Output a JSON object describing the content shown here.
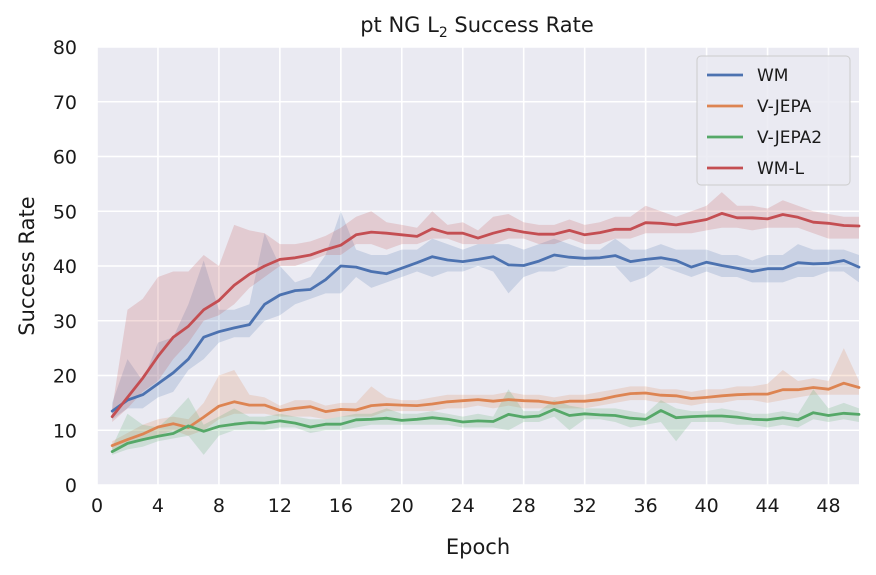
{
  "chart_data": {
    "type": "line",
    "title": "pt NG L",
    "title_subscript": "2",
    "title_suffix": " Success Rate",
    "xlabel": "Epoch",
    "ylabel": "Success Rate",
    "xlim": [
      0,
      50
    ],
    "ylim": [
      0,
      80
    ],
    "xticks": [
      0,
      4,
      8,
      12,
      16,
      20,
      24,
      28,
      32,
      36,
      40,
      44,
      48
    ],
    "yticks": [
      0,
      10,
      20,
      30,
      40,
      50,
      60,
      70,
      80
    ],
    "grid": true,
    "legend_position": "top-right",
    "x": [
      1,
      2,
      3,
      4,
      5,
      6,
      7,
      8,
      9,
      10,
      11,
      12,
      13,
      14,
      15,
      16,
      17,
      18,
      19,
      20,
      21,
      22,
      23,
      24,
      25,
      26,
      27,
      28,
      29,
      30,
      31,
      32,
      33,
      34,
      35,
      36,
      37,
      38,
      39,
      40,
      41,
      42,
      43,
      44,
      45,
      46,
      47,
      48,
      49,
      50
    ],
    "series": [
      {
        "name": "WM",
        "color": "#4c72b0",
        "values": [
          13.5,
          15.5,
          16.5,
          18.5,
          20.5,
          23.0,
          27.0,
          28.0,
          28.7,
          29.3,
          33.0,
          34.7,
          35.5,
          35.7,
          37.5,
          40.0,
          39.8,
          39.0,
          38.6,
          39.6,
          40.6,
          41.7,
          41.1,
          40.8,
          41.2,
          41.7,
          40.2,
          40.1,
          40.9,
          42.0,
          41.6,
          41.4,
          41.5,
          41.9,
          40.8,
          41.2,
          41.5,
          41.0,
          39.8,
          40.7,
          40.1,
          39.6,
          39.0,
          39.5,
          39.5,
          40.6,
          40.4,
          40.5,
          41.0,
          39.8
        ],
        "band": [
          [
            12.0,
            15.0
          ],
          [
            14.0,
            23.0
          ],
          [
            14.0,
            19.0
          ],
          [
            16.0,
            26.0
          ],
          [
            17.0,
            27.0
          ],
          [
            21.0,
            33.0
          ],
          [
            23.0,
            41.0
          ],
          [
            26.0,
            32.0
          ],
          [
            27.0,
            32.0
          ],
          [
            27.0,
            33.0
          ],
          [
            30.0,
            46.0
          ],
          [
            31.0,
            40.0
          ],
          [
            33.0,
            37.0
          ],
          [
            34.0,
            38.0
          ],
          [
            35.0,
            42.0
          ],
          [
            35.0,
            50.0
          ],
          [
            38.0,
            43.0
          ],
          [
            36.0,
            42.0
          ],
          [
            37.0,
            42.0
          ],
          [
            38.0,
            43.0
          ],
          [
            39.0,
            43.0
          ],
          [
            38.0,
            45.0
          ],
          [
            39.0,
            44.0
          ],
          [
            39.0,
            43.0
          ],
          [
            40.0,
            44.0
          ],
          [
            39.0,
            44.0
          ],
          [
            35.0,
            44.0
          ],
          [
            38.0,
            43.0
          ],
          [
            39.0,
            44.0
          ],
          [
            39.0,
            45.0
          ],
          [
            40.0,
            44.0
          ],
          [
            40.0,
            43.0
          ],
          [
            40.0,
            43.0
          ],
          [
            40.0,
            45.0
          ],
          [
            37.0,
            43.0
          ],
          [
            38.0,
            43.0
          ],
          [
            40.0,
            44.0
          ],
          [
            39.0,
            43.0
          ],
          [
            38.0,
            43.0
          ],
          [
            39.0,
            43.0
          ],
          [
            38.0,
            42.0
          ],
          [
            38.0,
            42.0
          ],
          [
            37.0,
            41.0
          ],
          [
            37.0,
            42.0
          ],
          [
            37.0,
            42.0
          ],
          [
            38.0,
            44.0
          ],
          [
            38.0,
            43.0
          ],
          [
            39.0,
            43.0
          ],
          [
            39.0,
            43.0
          ],
          [
            37.0,
            42.0
          ]
        ]
      },
      {
        "name": "V-JEPA",
        "color": "#dd8452",
        "values": [
          7.2,
          8.3,
          9.3,
          10.6,
          11.2,
          10.5,
          12.4,
          14.4,
          15.2,
          14.6,
          14.6,
          13.6,
          14.0,
          14.3,
          13.4,
          13.8,
          13.7,
          14.5,
          14.7,
          14.6,
          14.5,
          14.8,
          15.2,
          15.4,
          15.6,
          15.3,
          15.6,
          15.4,
          15.3,
          14.9,
          15.3,
          15.3,
          15.6,
          16.2,
          16.7,
          16.8,
          16.4,
          16.3,
          15.8,
          16.0,
          16.3,
          16.5,
          16.6,
          16.6,
          17.4,
          17.4,
          17.8,
          17.5,
          18.6,
          17.8
        ],
        "band": [
          [
            6.5,
            8.0
          ],
          [
            7.5,
            9.5
          ],
          [
            8.0,
            11.0
          ],
          [
            9.0,
            12.0
          ],
          [
            10.0,
            12.5
          ],
          [
            9.0,
            12.0
          ],
          [
            10.0,
            15.0
          ],
          [
            12.0,
            20.0
          ],
          [
            13.0,
            21.0
          ],
          [
            13.0,
            16.5
          ],
          [
            13.0,
            16.0
          ],
          [
            12.5,
            14.5
          ],
          [
            12.5,
            15.5
          ],
          [
            12.5,
            15.5
          ],
          [
            12.0,
            14.5
          ],
          [
            12.5,
            15.0
          ],
          [
            12.5,
            15.0
          ],
          [
            12.5,
            18.0
          ],
          [
            13.5,
            16.0
          ],
          [
            13.5,
            15.5
          ],
          [
            13.5,
            15.5
          ],
          [
            13.5,
            16.0
          ],
          [
            14.0,
            16.5
          ],
          [
            14.0,
            16.5
          ],
          [
            14.5,
            16.5
          ],
          [
            14.0,
            16.5
          ],
          [
            14.5,
            17.0
          ],
          [
            14.0,
            16.5
          ],
          [
            14.0,
            16.5
          ],
          [
            14.0,
            16.0
          ],
          [
            14.0,
            16.5
          ],
          [
            14.0,
            16.5
          ],
          [
            14.5,
            17.0
          ],
          [
            15.0,
            17.5
          ],
          [
            15.5,
            18.0
          ],
          [
            15.5,
            18.0
          ],
          [
            15.0,
            17.5
          ],
          [
            15.0,
            17.5
          ],
          [
            14.5,
            17.0
          ],
          [
            15.0,
            17.5
          ],
          [
            15.0,
            17.5
          ],
          [
            15.5,
            18.0
          ],
          [
            15.5,
            18.0
          ],
          [
            15.0,
            18.5
          ],
          [
            15.5,
            21.0
          ],
          [
            16.0,
            19.0
          ],
          [
            16.5,
            19.5
          ],
          [
            16.5,
            19.0
          ],
          [
            16.5,
            25.0
          ],
          [
            16.5,
            19.0
          ]
        ]
      },
      {
        "name": "V-JEPA2",
        "color": "#55a868",
        "values": [
          6.1,
          7.6,
          8.3,
          8.9,
          9.4,
          10.8,
          9.8,
          10.7,
          11.1,
          11.4,
          11.3,
          11.7,
          11.3,
          10.6,
          11.1,
          11.1,
          11.9,
          12.0,
          12.2,
          11.8,
          12.0,
          12.3,
          12.0,
          11.5,
          11.7,
          11.6,
          12.9,
          12.4,
          12.6,
          13.8,
          12.7,
          13.0,
          12.8,
          12.7,
          12.2,
          12.0,
          13.6,
          12.3,
          12.5,
          12.6,
          12.6,
          12.4,
          12.0,
          11.9,
          12.3,
          11.9,
          13.2,
          12.7,
          13.1,
          12.9
        ],
        "band": [
          [
            5.5,
            7.0
          ],
          [
            6.5,
            13.0
          ],
          [
            7.0,
            11.0
          ],
          [
            8.0,
            10.5
          ],
          [
            8.5,
            13.0
          ],
          [
            9.0,
            16.0
          ],
          [
            5.5,
            11.0
          ],
          [
            9.0,
            12.5
          ],
          [
            10.0,
            14.0
          ],
          [
            10.0,
            12.5
          ],
          [
            10.0,
            12.5
          ],
          [
            10.5,
            13.0
          ],
          [
            10.5,
            12.5
          ],
          [
            9.5,
            12.0
          ],
          [
            10.0,
            12.0
          ],
          [
            10.0,
            12.5
          ],
          [
            10.5,
            13.0
          ],
          [
            11.0,
            13.0
          ],
          [
            11.0,
            14.0
          ],
          [
            11.0,
            13.0
          ],
          [
            11.0,
            13.0
          ],
          [
            11.0,
            13.5
          ],
          [
            11.0,
            13.0
          ],
          [
            10.5,
            12.5
          ],
          [
            10.5,
            13.0
          ],
          [
            10.5,
            12.5
          ],
          [
            10.0,
            17.5
          ],
          [
            11.5,
            13.5
          ],
          [
            11.5,
            13.5
          ],
          [
            12.5,
            15.5
          ],
          [
            10.0,
            14.5
          ],
          [
            12.0,
            14.0
          ],
          [
            12.0,
            14.0
          ],
          [
            11.5,
            14.0
          ],
          [
            10.5,
            13.5
          ],
          [
            11.0,
            13.0
          ],
          [
            11.5,
            15.5
          ],
          [
            8.0,
            14.0
          ],
          [
            11.5,
            13.5
          ],
          [
            11.5,
            13.5
          ],
          [
            11.5,
            14.0
          ],
          [
            11.0,
            13.5
          ],
          [
            11.0,
            13.0
          ],
          [
            10.5,
            13.0
          ],
          [
            11.0,
            13.5
          ],
          [
            10.5,
            13.0
          ],
          [
            12.0,
            17.5
          ],
          [
            11.5,
            14.0
          ],
          [
            12.0,
            15.0
          ],
          [
            11.5,
            14.0
          ]
        ]
      },
      {
        "name": "WM-L",
        "color": "#c44e52",
        "values": [
          12.5,
          16.0,
          19.5,
          23.5,
          27.0,
          29.0,
          32.0,
          33.7,
          36.5,
          38.5,
          40.0,
          41.2,
          41.5,
          42.0,
          43.0,
          43.8,
          45.7,
          46.2,
          46.0,
          45.7,
          45.4,
          46.8,
          46.0,
          46.0,
          45.1,
          46.0,
          46.7,
          46.2,
          45.8,
          45.8,
          46.5,
          45.7,
          46.1,
          46.7,
          46.7,
          47.9,
          47.8,
          47.5,
          48.0,
          48.5,
          49.6,
          48.8,
          48.8,
          48.6,
          49.4,
          48.9,
          48.0,
          47.8,
          47.4,
          47.3
        ],
        "band": [
          [
            11.5,
            14.0
          ],
          [
            14.0,
            32.0
          ],
          [
            17.0,
            34.0
          ],
          [
            19.0,
            38.0
          ],
          [
            23.0,
            39.0
          ],
          [
            26.0,
            39.0
          ],
          [
            30.0,
            42.0
          ],
          [
            31.0,
            40.0
          ],
          [
            33.0,
            47.5
          ],
          [
            36.0,
            46.5
          ],
          [
            38.0,
            46.0
          ],
          [
            40.0,
            44.0
          ],
          [
            40.0,
            44.0
          ],
          [
            41.0,
            44.5
          ],
          [
            42.0,
            45.5
          ],
          [
            42.0,
            47.0
          ],
          [
            44.0,
            49.0
          ],
          [
            44.0,
            50.0
          ],
          [
            43.0,
            48.0
          ],
          [
            44.0,
            47.5
          ],
          [
            44.0,
            47.0
          ],
          [
            45.0,
            50.0
          ],
          [
            45.0,
            47.5
          ],
          [
            44.0,
            48.0
          ],
          [
            44.0,
            46.5
          ],
          [
            44.0,
            49.0
          ],
          [
            45.0,
            49.5
          ],
          [
            45.0,
            48.0
          ],
          [
            44.0,
            47.5
          ],
          [
            44.0,
            47.5
          ],
          [
            45.0,
            48.5
          ],
          [
            44.0,
            47.5
          ],
          [
            44.0,
            48.0
          ],
          [
            45.0,
            49.0
          ],
          [
            45.0,
            49.0
          ],
          [
            46.0,
            51.0
          ],
          [
            46.0,
            50.0
          ],
          [
            46.0,
            49.0
          ],
          [
            46.0,
            50.0
          ],
          [
            46.5,
            51.0
          ],
          [
            47.0,
            53.5
          ],
          [
            47.0,
            51.0
          ],
          [
            46.5,
            51.0
          ],
          [
            47.0,
            50.5
          ],
          [
            47.0,
            52.0
          ],
          [
            47.0,
            51.0
          ],
          [
            46.0,
            50.0
          ],
          [
            45.0,
            49.5
          ],
          [
            45.0,
            49.0
          ],
          [
            45.0,
            49.0
          ]
        ]
      }
    ]
  }
}
